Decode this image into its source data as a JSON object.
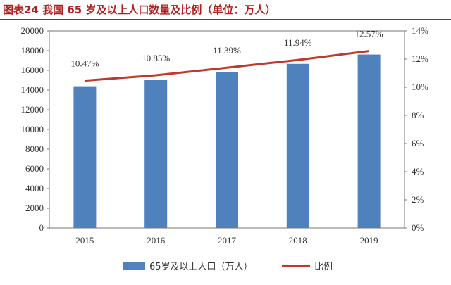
{
  "header": {
    "title": "图表24   我国 65 岁及以上人口数量及比例（单位：万人）"
  },
  "colors": {
    "bar": "#4f81bd",
    "line": "#c0392b",
    "title": "#b21f1f",
    "axis": "#777777"
  },
  "chart_data": {
    "type": "bar",
    "title": "",
    "categories": [
      "2015",
      "2016",
      "2017",
      "2018",
      "2019"
    ],
    "series": [
      {
        "name": "65岁及以上人口（万人）",
        "type": "bar",
        "axis": "left",
        "values": [
          14386,
          15003,
          15831,
          16658,
          17603
        ]
      },
      {
        "name": "比例",
        "type": "line",
        "axis": "right",
        "values": [
          10.47,
          10.85,
          11.39,
          11.94,
          12.57
        ],
        "labels": [
          "10.47%",
          "10.85%",
          "11.39%",
          "11.94%",
          "12.57%"
        ]
      }
    ],
    "y_left": {
      "lim": [
        0,
        20000
      ],
      "ticks": [
        0,
        2000,
        4000,
        6000,
        8000,
        10000,
        12000,
        14000,
        16000,
        18000,
        20000
      ],
      "tick_labels": [
        "0",
        "2000",
        "4000",
        "6000",
        "8000",
        "10000",
        "12000",
        "14000",
        "16000",
        "18000",
        "20000"
      ]
    },
    "y_right": {
      "lim": [
        0,
        14
      ],
      "ticks": [
        0,
        2,
        4,
        6,
        8,
        10,
        12,
        14
      ],
      "tick_labels": [
        "0%",
        "2%",
        "4%",
        "6%",
        "8%",
        "10%",
        "12%",
        "14%"
      ]
    },
    "xlabel": "",
    "ylabel": "",
    "grid": false,
    "legend_position": "bottom"
  }
}
